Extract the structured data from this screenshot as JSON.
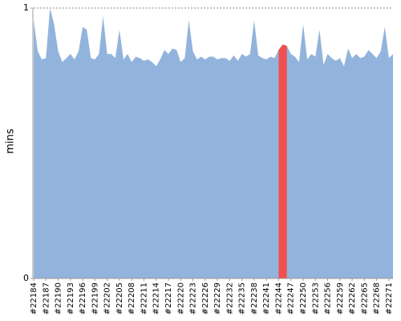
{
  "chart_data": {
    "type": "area",
    "y_label": "mins",
    "categories": [
      "#22184",
      null,
      null,
      "#22187",
      null,
      null,
      "#22190",
      null,
      null,
      "#22193",
      null,
      null,
      "#22196",
      null,
      null,
      "#22199",
      null,
      null,
      "#22202",
      null,
      null,
      "#22205",
      null,
      null,
      "#22208",
      null,
      null,
      "#22211",
      null,
      null,
      "#22214",
      null,
      null,
      "#22217",
      null,
      null,
      "#22220",
      null,
      null,
      "#22223",
      null,
      null,
      "#22226",
      null,
      null,
      "#22229",
      null,
      null,
      "#22232",
      null,
      null,
      "#22235",
      null,
      null,
      "#22238",
      null,
      null,
      "#22241",
      null,
      null,
      "#22244",
      null,
      null,
      "#22247",
      null,
      null,
      "#22250",
      null,
      null,
      "#22253",
      null,
      null,
      "#22256",
      null,
      null,
      "#22259",
      null,
      null,
      "#22262",
      null,
      null,
      "#22265",
      null,
      null,
      "#22268",
      null,
      null,
      "#22271",
      null
    ],
    "series": [
      {
        "color": "#92b4dc",
        "values": [
          0.955,
          0.84,
          0.81,
          0.815,
          1.0,
          0.94,
          0.84,
          0.8,
          0.815,
          0.83,
          0.81,
          0.84,
          0.93,
          0.92,
          0.815,
          0.81,
          0.83,
          0.97,
          0.83,
          0.83,
          0.815,
          0.92,
          0.81,
          0.83,
          0.8,
          0.82,
          0.815,
          0.805,
          0.81,
          0.8,
          0.785,
          0.81,
          0.845,
          0.83,
          0.85,
          0.845,
          0.8,
          0.815,
          0.955,
          0.84,
          0.81,
          0.82,
          0.81,
          0.82,
          0.82,
          0.81,
          0.815,
          0.815,
          0.805,
          0.825,
          0.805,
          0.83,
          0.82,
          0.83,
          0.955,
          0.825,
          0.815,
          0.81,
          0.82,
          0.815,
          0.845,
          0.865,
          0.86,
          0.83,
          0.82,
          0.8,
          0.94,
          0.81,
          0.83,
          0.82,
          0.92,
          0.79,
          0.83,
          0.815,
          0.805,
          0.815,
          0.785,
          0.85,
          0.815,
          0.83,
          0.815,
          0.82,
          0.845,
          0.83,
          0.815,
          0.84,
          0.93,
          0.815,
          0.83
        ]
      },
      {
        "color": "#f05050",
        "values": [
          null,
          null,
          null,
          null,
          null,
          null,
          null,
          null,
          null,
          null,
          null,
          null,
          null,
          null,
          null,
          null,
          null,
          null,
          null,
          null,
          null,
          null,
          null,
          null,
          null,
          null,
          null,
          null,
          null,
          null,
          null,
          null,
          null,
          null,
          null,
          null,
          null,
          null,
          null,
          null,
          null,
          null,
          null,
          null,
          null,
          null,
          null,
          null,
          null,
          null,
          null,
          null,
          null,
          null,
          null,
          null,
          null,
          null,
          null,
          null,
          0.845,
          0.865,
          0.86,
          null,
          null,
          null,
          null,
          null,
          null,
          null,
          null,
          null,
          null,
          null,
          null,
          null,
          null,
          null,
          null,
          null,
          null,
          null,
          null,
          null,
          null,
          null,
          null,
          null,
          null
        ]
      }
    ],
    "ylim": [
      0,
      1
    ],
    "yticks": [
      0,
      1
    ],
    "grid": true
  }
}
